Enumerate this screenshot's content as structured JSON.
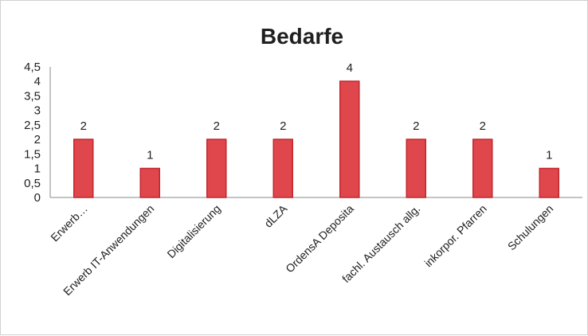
{
  "chart_data": {
    "type": "bar",
    "title": "Bedarfe",
    "categories": [
      "Erwerb…",
      "Erwerb IT-Anwendungen",
      "Digitalisierung",
      "dLZA",
      "OrdensA Deposita",
      "fachl. Austausch allg.",
      "inkorpor. Pfarren",
      "Schulungen"
    ],
    "values": [
      2,
      1,
      2,
      2,
      4,
      2,
      2,
      1
    ],
    "data_labels": [
      "2",
      "1",
      "2",
      "2",
      "4",
      "2",
      "2",
      "1"
    ],
    "y_ticks": [
      "0",
      "0,5",
      "1",
      "1,5",
      "2",
      "2,5",
      "3",
      "3,5",
      "4",
      "4,5"
    ],
    "ylim": [
      0,
      4.5
    ],
    "bar_color": "#e0474c",
    "bar_edge_color": "#c0272d",
    "grid": false,
    "legend": "none"
  }
}
